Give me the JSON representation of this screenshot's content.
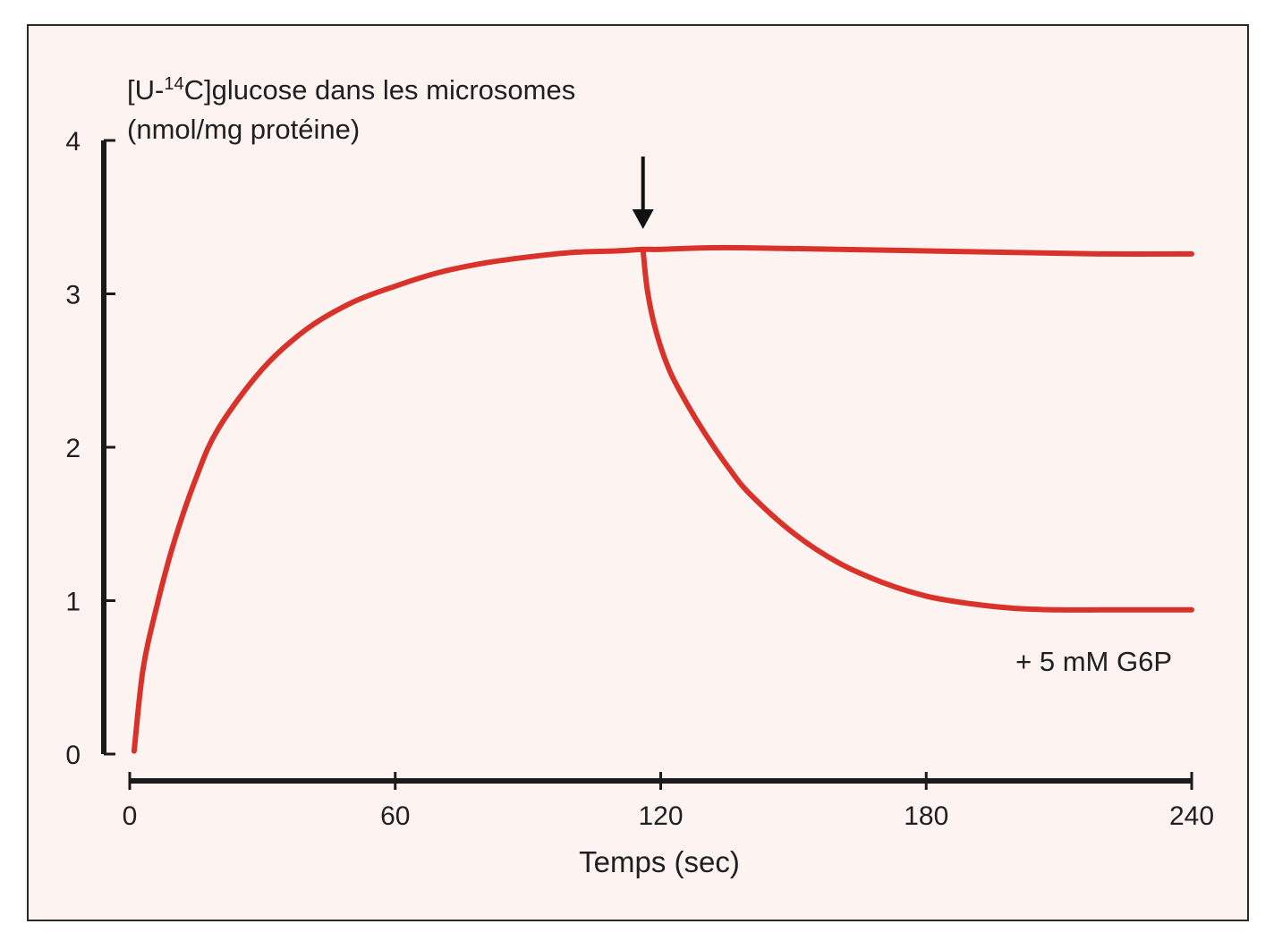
{
  "chart_data": {
    "type": "line",
    "ylabel_line1": {
      "prefix": "[U-",
      "sup": "14",
      "suffix": "C]glucose dans les microsomes"
    },
    "ylabel_line2": "(nmol/mg protéine)",
    "xlabel": "Temps (sec)",
    "xlim": [
      0,
      240
    ],
    "ylim": [
      0,
      4
    ],
    "x_ticks": [
      0,
      60,
      120,
      180,
      240
    ],
    "x_tick_labels": [
      "0",
      "60",
      "120",
      "180",
      "240"
    ],
    "y_ticks": [
      0,
      1,
      2,
      3,
      4
    ],
    "y_tick_labels": [
      "0",
      "1",
      "2",
      "3",
      "4"
    ],
    "series": [
      {
        "color": "#d8322a",
        "x": [
          1,
          3,
          6,
          10,
          15,
          20,
          30,
          40,
          50,
          60,
          70,
          80,
          90,
          100,
          110,
          116,
          120,
          130,
          140,
          160,
          180,
          200,
          220,
          240
        ],
        "y": [
          0.02,
          0.55,
          0.95,
          1.38,
          1.8,
          2.12,
          2.51,
          2.77,
          2.94,
          3.05,
          3.14,
          3.2,
          3.24,
          3.27,
          3.28,
          3.29,
          3.29,
          3.3,
          3.3,
          3.29,
          3.28,
          3.27,
          3.26,
          3.26
        ]
      },
      {
        "name": "+ 5 mM G6P",
        "color": "#d8322a",
        "x": [
          116,
          117,
          119,
          122,
          126,
          130,
          135,
          140,
          150,
          160,
          170,
          180,
          190,
          200,
          210,
          220,
          230,
          240
        ],
        "y": [
          3.29,
          3.02,
          2.75,
          2.5,
          2.28,
          2.09,
          1.88,
          1.7,
          1.44,
          1.25,
          1.12,
          1.03,
          0.98,
          0.95,
          0.94,
          0.94,
          0.94,
          0.94
        ]
      }
    ],
    "annotations": [
      {
        "type": "arrow",
        "x": 116,
        "direction": "down"
      }
    ],
    "grid": false,
    "legend": "none"
  }
}
